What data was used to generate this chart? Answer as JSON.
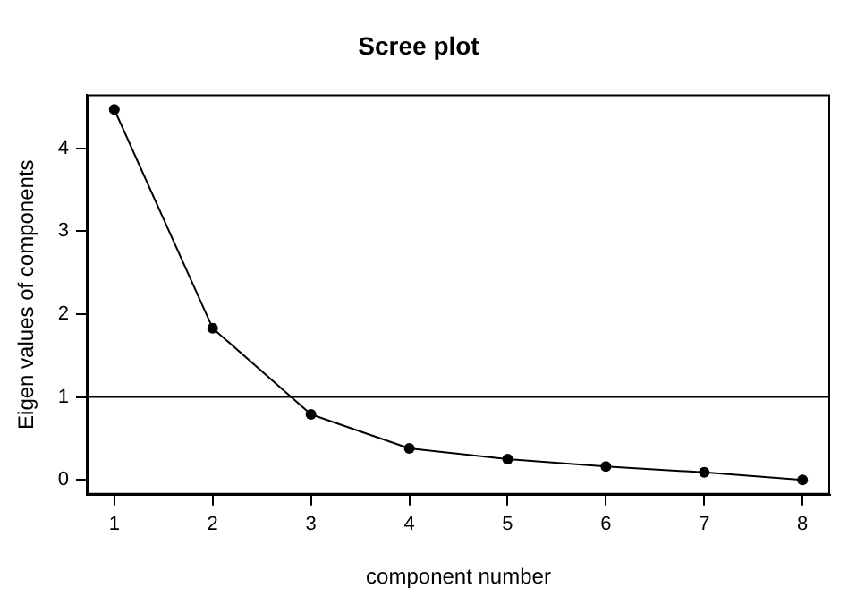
{
  "chart_data": {
    "type": "line",
    "title": "Scree plot",
    "xlabel": "component number",
    "ylabel": "Eigen values of components",
    "x": [
      1,
      2,
      3,
      4,
      5,
      6,
      7,
      8
    ],
    "series": [
      {
        "color": "#000000",
        "values": [
          4.47,
          1.83,
          0.79,
          0.38,
          0.25,
          0.16,
          0.09,
          0.0
        ]
      }
    ],
    "xlim": [
      0.72,
      8.28
    ],
    "xticks": [
      1,
      2,
      3,
      4,
      5,
      6,
      7,
      8
    ],
    "ylim": [
      -0.18,
      4.65
    ],
    "yticks": [
      0,
      1,
      2,
      3,
      4
    ],
    "ref_lines": [
      {
        "axis": "y",
        "value": 1,
        "color": "#000000"
      }
    ],
    "grid": false,
    "legend": false,
    "marker": "circle",
    "line_style": "solid"
  }
}
